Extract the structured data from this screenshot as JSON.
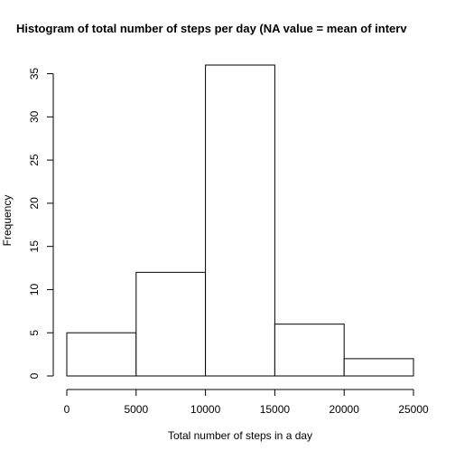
{
  "chart_data": {
    "type": "bar",
    "subtype": "histogram",
    "title": "Histogram of total number of steps per day (NA value = mean of interv",
    "xlabel": "Total number of steps in a day",
    "ylabel": "Frequency",
    "bins": [
      {
        "x0": 0,
        "x1": 5000,
        "count": 5
      },
      {
        "x0": 5000,
        "x1": 10000,
        "count": 12
      },
      {
        "x0": 10000,
        "x1": 15000,
        "count": 36
      },
      {
        "x0": 15000,
        "x1": 20000,
        "count": 6
      },
      {
        "x0": 20000,
        "x1": 25000,
        "count": 2
      }
    ],
    "xlim": [
      0,
      25000
    ],
    "ylim": [
      0,
      36
    ],
    "x_ticks": [
      0,
      5000,
      10000,
      15000,
      20000,
      25000
    ],
    "x_tick_labels": [
      "0",
      "5000",
      "10000",
      "15000",
      "20000",
      "25000"
    ],
    "y_ticks": [
      0,
      5,
      10,
      15,
      20,
      25,
      30,
      35
    ],
    "y_tick_labels": [
      "0",
      "5",
      "10",
      "15",
      "20",
      "25",
      "30",
      "35"
    ],
    "grid": false,
    "legend": "none",
    "bar_fill": "#ffffff",
    "bar_stroke": "#000000"
  }
}
